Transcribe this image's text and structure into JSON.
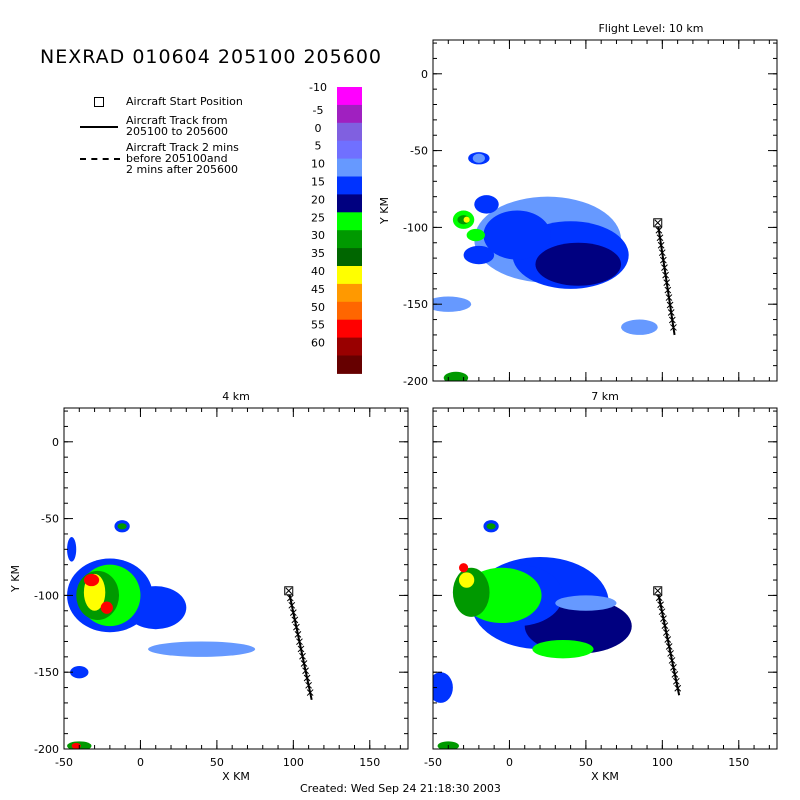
{
  "title": "NEXRAD 010604 205100 205600",
  "footer": "Created: Wed Sep 24 21:18:30 2003",
  "legend": {
    "start_label": "Aircraft Start Position",
    "track_label_1": "Aircraft Track from",
    "track_label_2": "205100 to 205600",
    "dash_label_1": "Aircraft Track 2 mins",
    "dash_label_2": "before 205100and",
    "dash_label_3": "2 mins after 205600"
  },
  "colorbar": {
    "levels": [
      "-10",
      "-5",
      "0",
      "5",
      "10",
      "15",
      "20",
      "25",
      "30",
      "35",
      "40",
      "45",
      "50",
      "55",
      "60"
    ],
    "colors": [
      "#ff00ff",
      "#a020c0",
      "#8060e0",
      "#7070ff",
      "#6699ff",
      "#0033ff",
      "#000080",
      "#00ff00",
      "#009900",
      "#006600",
      "#ffff00",
      "#ff9900",
      "#ff6600",
      "#ff0000",
      "#990000",
      "#660000"
    ]
  },
  "chart_data": [
    {
      "type": "heatmap",
      "panel": "top-right",
      "title": "Flight Level: 10 km",
      "xlabel": "",
      "ylabel": "Y KM",
      "xlim": [
        -50,
        175
      ],
      "ylim": [
        -200,
        22
      ],
      "xticks": [],
      "yticks": [
        0,
        -50,
        -100,
        -150,
        -200
      ],
      "aircraft_start": [
        97,
        -97
      ],
      "aircraft_track": [
        [
          97,
          -97
        ],
        [
          108,
          -170
        ]
      ]
    },
    {
      "type": "heatmap",
      "panel": "bottom-left",
      "title": "4 km",
      "xlabel": "X KM",
      "ylabel": "Y KM",
      "xlim": [
        -50,
        175
      ],
      "ylim": [
        -200,
        22
      ],
      "xticks": [
        -50,
        0,
        50,
        100,
        150
      ],
      "yticks": [
        0,
        -50,
        -100,
        -150,
        -200
      ],
      "aircraft_start": [
        97,
        -97
      ],
      "aircraft_track": [
        [
          97,
          -97
        ],
        [
          112,
          -168
        ]
      ]
    },
    {
      "type": "heatmap",
      "panel": "bottom-right",
      "title": "7 km",
      "xlabel": "X KM",
      "ylabel": "",
      "xlim": [
        -50,
        175
      ],
      "ylim": [
        -200,
        22
      ],
      "xticks": [
        -50,
        0,
        50,
        100,
        150
      ],
      "yticks": [],
      "aircraft_start": [
        97,
        -97
      ],
      "aircraft_track": [
        [
          97,
          -97
        ],
        [
          111,
          -165
        ]
      ]
    }
  ]
}
